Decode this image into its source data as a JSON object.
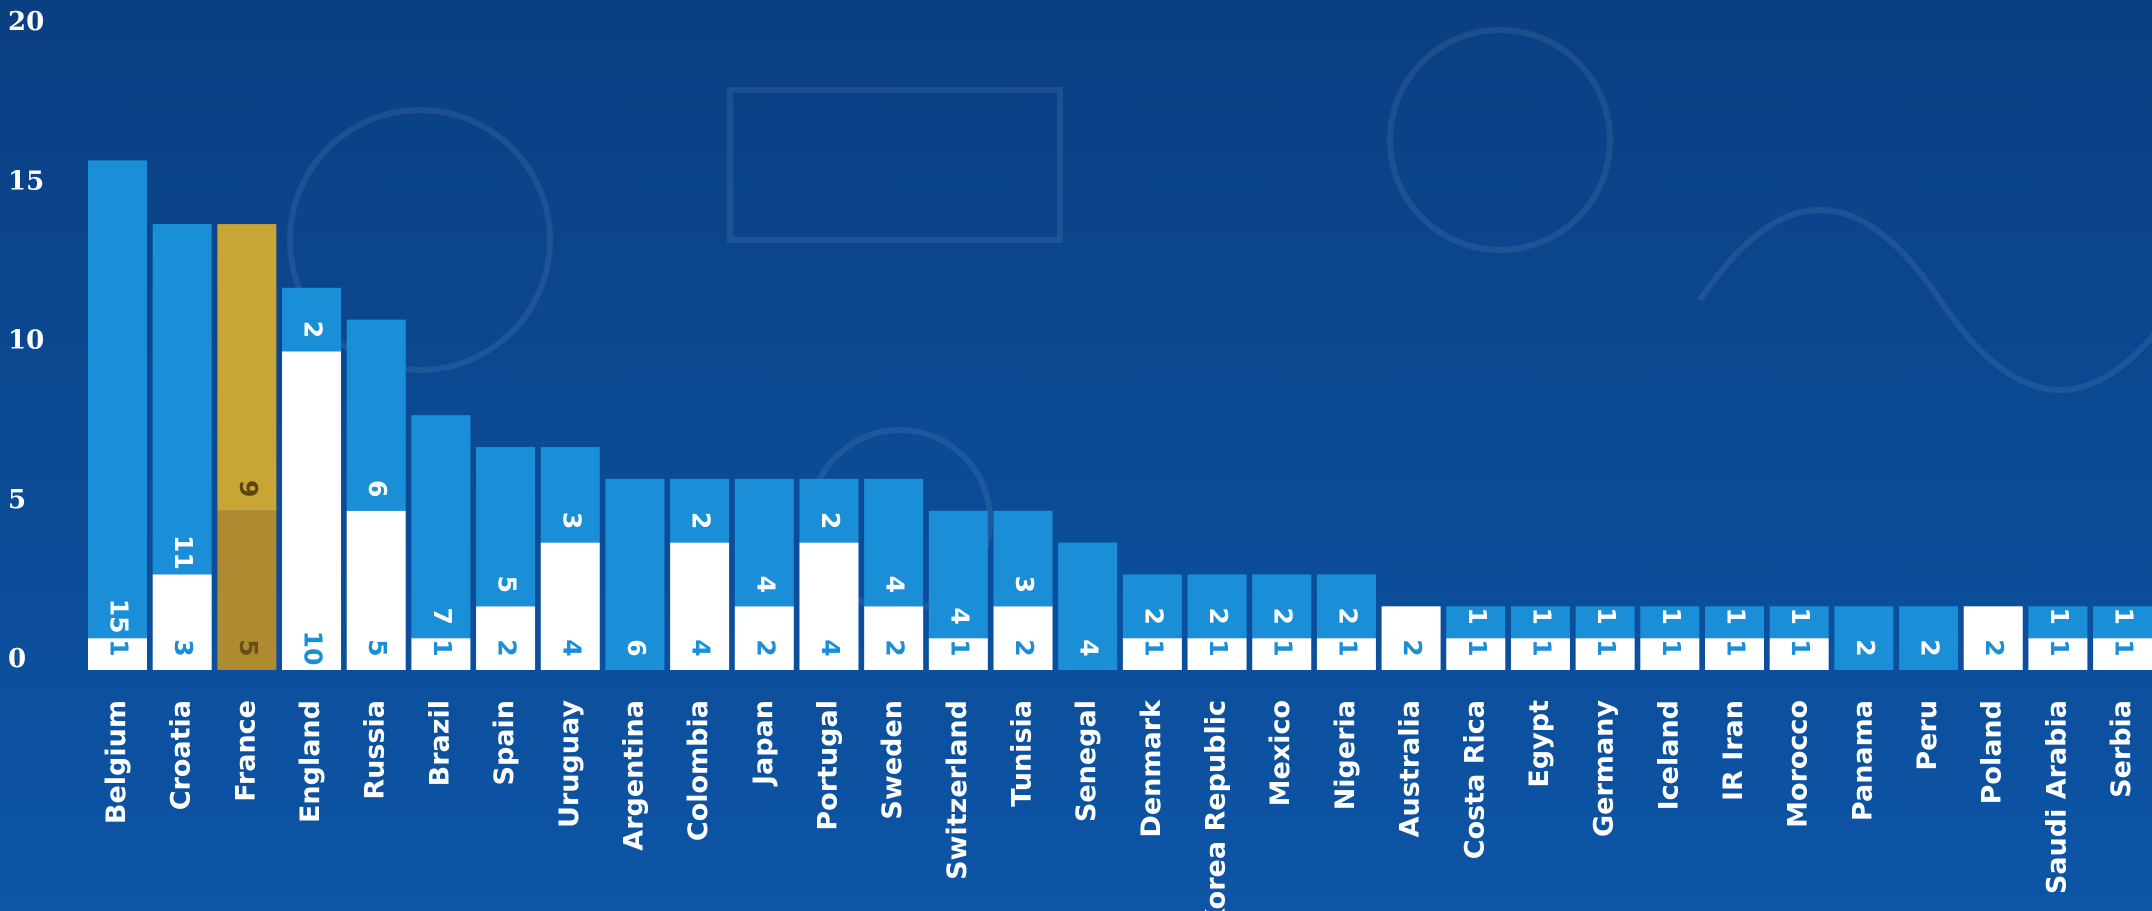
{
  "chart_data": {
    "type": "stacked-bar",
    "categories": [
      "Belgium",
      "Croatia",
      "France",
      "England",
      "Russia",
      "Brazil",
      "Spain",
      "Uruguay",
      "Argentina",
      "Colombia",
      "Japan",
      "Portugal",
      "Sweden",
      "Switzerland",
      "Tunisia",
      "Senegal",
      "Denmark",
      "Korea Republic",
      "Mexico",
      "Nigeria",
      "Australia",
      "Costa Rica",
      "Egypt",
      "Germany",
      "Iceland",
      "IR Iran",
      "Morocco",
      "Panama",
      "Peru",
      "Poland",
      "Saudi Arabia",
      "Serbia"
    ],
    "series": [
      {
        "color": "#ffffff",
        "label_color": "#1a8fd8",
        "highlight_color": "#b08a30",
        "highlight_label_color": "#6a4f14",
        "values": [
          1,
          3,
          5,
          10,
          5,
          1,
          2,
          4,
          null,
          4,
          2,
          4,
          2,
          1,
          2,
          null,
          1,
          1,
          1,
          1,
          2,
          1,
          1,
          1,
          1,
          1,
          1,
          null,
          null,
          2,
          1,
          1
        ]
      },
      {
        "color": "#1a8fd8",
        "label_color": "#ffffff",
        "highlight_color": "#c9a535",
        "highlight_label_color": "#5a4410",
        "values": [
          15,
          11,
          9,
          2,
          6,
          7,
          5,
          3,
          6,
          2,
          4,
          2,
          4,
          4,
          3,
          4,
          2,
          2,
          2,
          2,
          null,
          1,
          1,
          1,
          1,
          1,
          1,
          2,
          2,
          null,
          1,
          1
        ]
      }
    ],
    "highlight": "France",
    "highlight_label_color": "#c9a535",
    "ylim": [
      0,
      20
    ],
    "yticks": [
      0,
      5,
      10,
      15,
      20
    ]
  }
}
